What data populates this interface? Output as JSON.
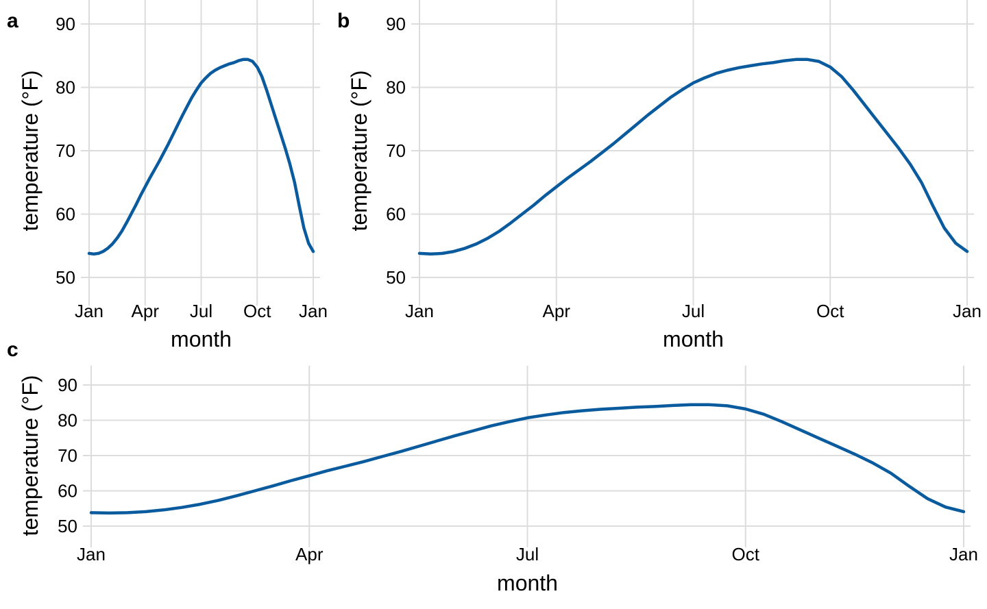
{
  "chart_data": [
    {
      "type": "line",
      "panel_label": "a",
      "xlabel": "month",
      "ylabel": "temperature (°F)",
      "x_ticks": [
        "Jan",
        "Apr",
        "Jul",
        "Oct",
        "Jan"
      ],
      "y_ticks": [
        50,
        60,
        70,
        80,
        90
      ],
      "ylim": [
        47.5,
        92
      ],
      "grid": true,
      "color": "#0a5b9e",
      "series": [
        {
          "x": [
            0,
            0.25,
            0.5,
            0.75,
            1,
            1.25,
            1.5,
            1.75,
            2,
            2.25,
            2.5,
            2.75,
            3,
            3.25,
            3.5,
            3.75,
            4,
            4.25,
            4.5,
            4.75,
            5,
            5.25,
            5.5,
            5.75,
            6,
            6.25,
            6.5,
            6.75,
            7,
            7.25,
            7.5,
            7.75,
            8,
            8.25,
            8.5,
            8.75,
            9,
            9.25,
            9.5,
            9.75,
            10,
            10.25,
            10.5,
            10.75,
            11,
            11.25,
            11.5,
            11.75,
            12
          ],
          "values": [
            53.8,
            53.7,
            53.8,
            54.1,
            54.6,
            55.3,
            56.2,
            57.3,
            58.6,
            60.0,
            61.4,
            62.9,
            64.3,
            65.7,
            67.0,
            68.3,
            69.7,
            71.1,
            72.6,
            74.1,
            75.6,
            77.0,
            78.4,
            79.6,
            80.7,
            81.5,
            82.2,
            82.7,
            83.1,
            83.4,
            83.7,
            83.9,
            84.2,
            84.4,
            84.4,
            84.1,
            83.2,
            81.7,
            79.6,
            77.3,
            75.0,
            72.7,
            70.4,
            67.9,
            65.0,
            61.3,
            57.8,
            55.4,
            54.1
          ]
        }
      ]
    },
    {
      "type": "line",
      "panel_label": "b",
      "xlabel": "month",
      "ylabel": "temperature (°F)",
      "x_ticks": [
        "Jan",
        "Apr",
        "Jul",
        "Oct",
        "Jan"
      ],
      "y_ticks": [
        50,
        60,
        70,
        80,
        90
      ],
      "ylim": [
        47.5,
        92
      ],
      "grid": true,
      "color": "#0a5b9e",
      "series": [
        {
          "x": [
            0,
            0.25,
            0.5,
            0.75,
            1,
            1.25,
            1.5,
            1.75,
            2,
            2.25,
            2.5,
            2.75,
            3,
            3.25,
            3.5,
            3.75,
            4,
            4.25,
            4.5,
            4.75,
            5,
            5.25,
            5.5,
            5.75,
            6,
            6.25,
            6.5,
            6.75,
            7,
            7.25,
            7.5,
            7.75,
            8,
            8.25,
            8.5,
            8.75,
            9,
            9.25,
            9.5,
            9.75,
            10,
            10.25,
            10.5,
            10.75,
            11,
            11.25,
            11.5,
            11.75,
            12
          ],
          "values": [
            53.8,
            53.7,
            53.8,
            54.1,
            54.6,
            55.3,
            56.2,
            57.3,
            58.6,
            60.0,
            61.4,
            62.9,
            64.3,
            65.7,
            67.0,
            68.3,
            69.7,
            71.1,
            72.6,
            74.1,
            75.6,
            77.0,
            78.4,
            79.6,
            80.7,
            81.5,
            82.2,
            82.7,
            83.1,
            83.4,
            83.7,
            83.9,
            84.2,
            84.4,
            84.4,
            84.1,
            83.2,
            81.7,
            79.6,
            77.3,
            75.0,
            72.7,
            70.4,
            67.9,
            65.0,
            61.3,
            57.8,
            55.4,
            54.1
          ]
        }
      ]
    },
    {
      "type": "line",
      "panel_label": "c",
      "xlabel": "month",
      "ylabel": "temperature (°F)",
      "x_ticks": [
        "Jan",
        "Apr",
        "Jul",
        "Oct",
        "Jan"
      ],
      "y_ticks": [
        50,
        60,
        70,
        80,
        90
      ],
      "ylim": [
        47.5,
        92
      ],
      "grid": true,
      "color": "#0a5b9e",
      "series": [
        {
          "x": [
            0,
            0.25,
            0.5,
            0.75,
            1,
            1.25,
            1.5,
            1.75,
            2,
            2.25,
            2.5,
            2.75,
            3,
            3.25,
            3.5,
            3.75,
            4,
            4.25,
            4.5,
            4.75,
            5,
            5.25,
            5.5,
            5.75,
            6,
            6.25,
            6.5,
            6.75,
            7,
            7.25,
            7.5,
            7.75,
            8,
            8.25,
            8.5,
            8.75,
            9,
            9.25,
            9.5,
            9.75,
            10,
            10.25,
            10.5,
            10.75,
            11,
            11.25,
            11.5,
            11.75,
            12
          ],
          "values": [
            53.8,
            53.7,
            53.8,
            54.1,
            54.6,
            55.3,
            56.2,
            57.3,
            58.6,
            60.0,
            61.4,
            62.9,
            64.3,
            65.7,
            67.0,
            68.3,
            69.7,
            71.1,
            72.6,
            74.1,
            75.6,
            77.0,
            78.4,
            79.6,
            80.7,
            81.5,
            82.2,
            82.7,
            83.1,
            83.4,
            83.7,
            83.9,
            84.2,
            84.4,
            84.4,
            84.1,
            83.2,
            81.7,
            79.6,
            77.3,
            75.0,
            72.7,
            70.4,
            67.9,
            65.0,
            61.3,
            57.8,
            55.4,
            54.1
          ]
        }
      ]
    }
  ]
}
